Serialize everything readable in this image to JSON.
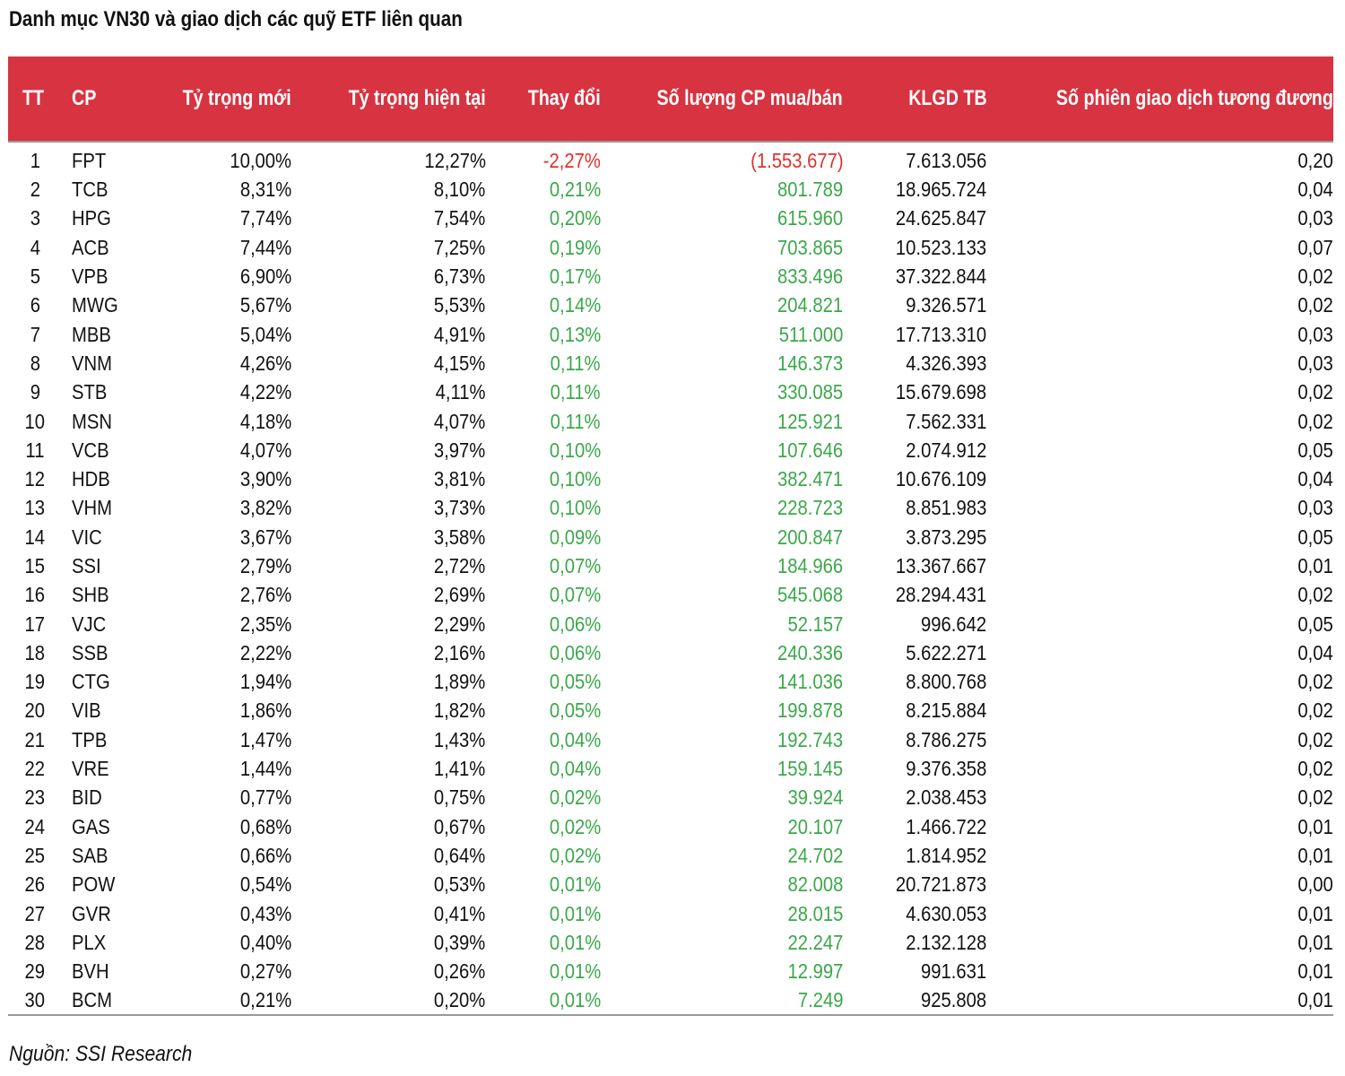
{
  "title": "Danh mục VN30 và giao dịch các quỹ ETF liên quan",
  "headers": [
    "TT",
    "CP",
    "Tỷ trọng mới",
    "Tỷ trọng hiện tại",
    "Thay đổi",
    "Số lượng CP mua/bán",
    "KLGD TB",
    "Số phiên giao dịch tương đương"
  ],
  "colors": {
    "header_bg": "#d73341",
    "negative": "#e0302c",
    "positive": "#3aa84a"
  },
  "rows": [
    [
      "1",
      "FPT",
      "10,00%",
      "12,27%",
      "-2,27%",
      "(1.553.677)",
      "7.613.056",
      "0,20"
    ],
    [
      "2",
      "TCB",
      "8,31%",
      "8,10%",
      "0,21%",
      "801.789",
      "18.965.724",
      "0,04"
    ],
    [
      "3",
      "HPG",
      "7,74%",
      "7,54%",
      "0,20%",
      "615.960",
      "24.625.847",
      "0,03"
    ],
    [
      "4",
      "ACB",
      "7,44%",
      "7,25%",
      "0,19%",
      "703.865",
      "10.523.133",
      "0,07"
    ],
    [
      "5",
      "VPB",
      "6,90%",
      "6,73%",
      "0,17%",
      "833.496",
      "37.322.844",
      "0,02"
    ],
    [
      "6",
      "MWG",
      "5,67%",
      "5,53%",
      "0,14%",
      "204.821",
      "9.326.571",
      "0,02"
    ],
    [
      "7",
      "MBB",
      "5,04%",
      "4,91%",
      "0,13%",
      "511.000",
      "17.713.310",
      "0,03"
    ],
    [
      "8",
      "VNM",
      "4,26%",
      "4,15%",
      "0,11%",
      "146.373",
      "4.326.393",
      "0,03"
    ],
    [
      "9",
      "STB",
      "4,22%",
      "4,11%",
      "0,11%",
      "330.085",
      "15.679.698",
      "0,02"
    ],
    [
      "10",
      "MSN",
      "4,18%",
      "4,07%",
      "0,11%",
      "125.921",
      "7.562.331",
      "0,02"
    ],
    [
      "11",
      "VCB",
      "4,07%",
      "3,97%",
      "0,10%",
      "107.646",
      "2.074.912",
      "0,05"
    ],
    [
      "12",
      "HDB",
      "3,90%",
      "3,81%",
      "0,10%",
      "382.471",
      "10.676.109",
      "0,04"
    ],
    [
      "13",
      "VHM",
      "3,82%",
      "3,73%",
      "0,10%",
      "228.723",
      "8.851.983",
      "0,03"
    ],
    [
      "14",
      "VIC",
      "3,67%",
      "3,58%",
      "0,09%",
      "200.847",
      "3.873.295",
      "0,05"
    ],
    [
      "15",
      "SSI",
      "2,79%",
      "2,72%",
      "0,07%",
      "184.966",
      "13.367.667",
      "0,01"
    ],
    [
      "16",
      "SHB",
      "2,76%",
      "2,69%",
      "0,07%",
      "545.068",
      "28.294.431",
      "0,02"
    ],
    [
      "17",
      "VJC",
      "2,35%",
      "2,29%",
      "0,06%",
      "52.157",
      "996.642",
      "0,05"
    ],
    [
      "18",
      "SSB",
      "2,22%",
      "2,16%",
      "0,06%",
      "240.336",
      "5.622.271",
      "0,04"
    ],
    [
      "19",
      "CTG",
      "1,94%",
      "1,89%",
      "0,05%",
      "141.036",
      "8.800.768",
      "0,02"
    ],
    [
      "20",
      "VIB",
      "1,86%",
      "1,82%",
      "0,05%",
      "199.878",
      "8.215.884",
      "0,02"
    ],
    [
      "21",
      "TPB",
      "1,47%",
      "1,43%",
      "0,04%",
      "192.743",
      "8.786.275",
      "0,02"
    ],
    [
      "22",
      "VRE",
      "1,44%",
      "1,41%",
      "0,04%",
      "159.145",
      "9.376.358",
      "0,02"
    ],
    [
      "23",
      "BID",
      "0,77%",
      "0,75%",
      "0,02%",
      "39.924",
      "2.038.453",
      "0,02"
    ],
    [
      "24",
      "GAS",
      "0,68%",
      "0,67%",
      "0,02%",
      "20.107",
      "1.466.722",
      "0,01"
    ],
    [
      "25",
      "SAB",
      "0,66%",
      "0,64%",
      "0,02%",
      "24.702",
      "1.814.952",
      "0,01"
    ],
    [
      "26",
      "POW",
      "0,54%",
      "0,53%",
      "0,01%",
      "82.008",
      "20.721.873",
      "0,00"
    ],
    [
      "27",
      "GVR",
      "0,43%",
      "0,41%",
      "0,01%",
      "28.015",
      "4.630.053",
      "0,01"
    ],
    [
      "28",
      "PLX",
      "0,40%",
      "0,39%",
      "0,01%",
      "22.247",
      "2.132.128",
      "0,01"
    ],
    [
      "29",
      "BVH",
      "0,27%",
      "0,26%",
      "0,01%",
      "12.997",
      "991.631",
      "0,01"
    ],
    [
      "30",
      "BCM",
      "0,21%",
      "0,20%",
      "0,01%",
      "7.249",
      "925.808",
      "0,01"
    ]
  ],
  "source": "Nguồn: SSI Research"
}
